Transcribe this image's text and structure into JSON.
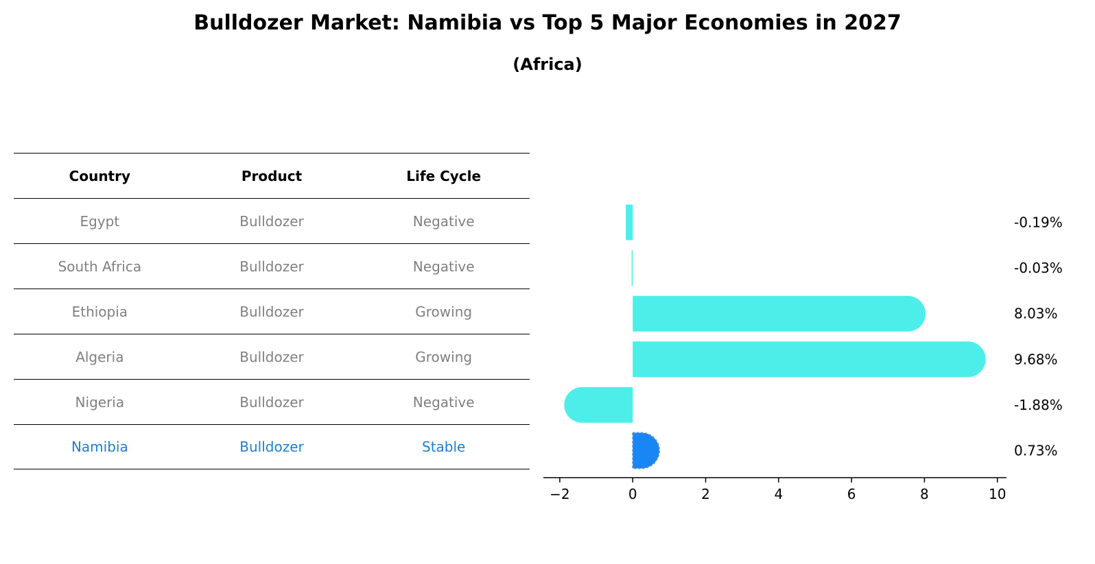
{
  "title": "Bulldozer Market: Namibia vs Top 5 Major Economies in 2027",
  "subtitle": "(Africa)",
  "table": {
    "headers": [
      "Country",
      "Product",
      "Life Cycle"
    ],
    "rows": [
      {
        "country": "Egypt",
        "product": "Bulldozer",
        "life_cycle": "Negative",
        "highlight": false
      },
      {
        "country": "South Africa",
        "product": "Bulldozer",
        "life_cycle": "Negative",
        "highlight": false
      },
      {
        "country": "Ethiopia",
        "product": "Bulldozer",
        "life_cycle": "Growing",
        "highlight": false
      },
      {
        "country": "Algeria",
        "product": "Bulldozer",
        "life_cycle": "Growing",
        "highlight": false
      },
      {
        "country": "Nigeria",
        "product": "Bulldozer",
        "life_cycle": "Negative",
        "highlight": false
      },
      {
        "country": "Namibia",
        "product": "Bulldozer",
        "life_cycle": "Stable",
        "highlight": true
      }
    ]
  },
  "colors": {
    "bar": "#4deeea",
    "highlight_bar": "#1a85f5",
    "muted_text": "#808080",
    "highlight_text": "#1a7fd4"
  },
  "chart_data": {
    "type": "bar",
    "orientation": "horizontal",
    "categories": [
      "Egypt",
      "South Africa",
      "Ethiopia",
      "Algeria",
      "Nigeria",
      "Namibia"
    ],
    "values": [
      -0.19,
      -0.03,
      8.03,
      9.68,
      -1.88,
      0.73
    ],
    "value_labels": [
      "-0.19%",
      "-0.03%",
      "8.03%",
      "9.68%",
      "-1.88%",
      "0.73%"
    ],
    "highlight_category": "Namibia",
    "xlim": [
      -2.45,
      10.25
    ],
    "xticks": [
      -2,
      0,
      2,
      4,
      6,
      8,
      10
    ],
    "xtick_labels": [
      "−2",
      "0",
      "2",
      "4",
      "6",
      "8",
      "10"
    ],
    "grid": false
  }
}
